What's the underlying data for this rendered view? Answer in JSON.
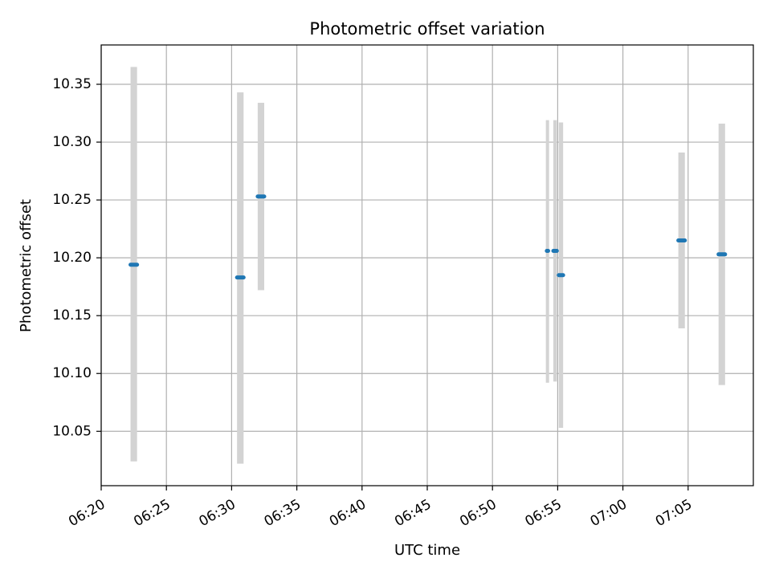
{
  "chart_data": {
    "type": "scatter",
    "title": "Photometric offset variation",
    "xlabel": "UTC time",
    "ylabel": "Photometric offset",
    "xlim": [
      "06:20",
      "07:10"
    ],
    "ylim": [
      10.003,
      10.384
    ],
    "grid": true,
    "x_ticks": [
      "06:20",
      "06:25",
      "06:30",
      "06:35",
      "06:40",
      "06:45",
      "06:50",
      "06:55",
      "07:00",
      "07:05"
    ],
    "y_ticks": [
      "10.05",
      "10.10",
      "10.15",
      "10.20",
      "10.25",
      "10.30",
      "10.35"
    ],
    "colors": {
      "point": "#1f77b4",
      "errorbar": "#d3d3d3",
      "grid": "#b0b0b0"
    },
    "points": [
      {
        "x": "06:22:30",
        "x_start": "06:22:15",
        "x_end": "06:22:45",
        "y": 10.194,
        "ylow": 10.024,
        "yhigh": 10.365
      },
      {
        "x": "06:30:40",
        "x_start": "06:30:25",
        "x_end": "06:30:55",
        "y": 10.183,
        "ylow": 10.022,
        "yhigh": 10.343
      },
      {
        "x": "06:32:15",
        "x_start": "06:32:00",
        "x_end": "06:32:30",
        "y": 10.253,
        "ylow": 10.172,
        "yhigh": 10.334
      },
      {
        "x": "06:54:13",
        "x_start": "06:54:10",
        "x_end": "06:54:16",
        "y": 10.206,
        "ylow": 10.092,
        "yhigh": 10.319
      },
      {
        "x": "06:54:48",
        "x_start": "06:54:40",
        "x_end": "06:54:56",
        "y": 10.206,
        "ylow": 10.093,
        "yhigh": 10.319
      },
      {
        "x": "06:55:15",
        "x_start": "06:55:05",
        "x_end": "06:55:25",
        "y": 10.185,
        "ylow": 10.053,
        "yhigh": 10.317
      },
      {
        "x": "07:04:30",
        "x_start": "07:04:15",
        "x_end": "07:04:45",
        "y": 10.215,
        "ylow": 10.139,
        "yhigh": 10.291
      },
      {
        "x": "07:07:35",
        "x_start": "07:07:20",
        "x_end": "07:07:50",
        "y": 10.203,
        "ylow": 10.09,
        "yhigh": 10.316
      }
    ]
  }
}
